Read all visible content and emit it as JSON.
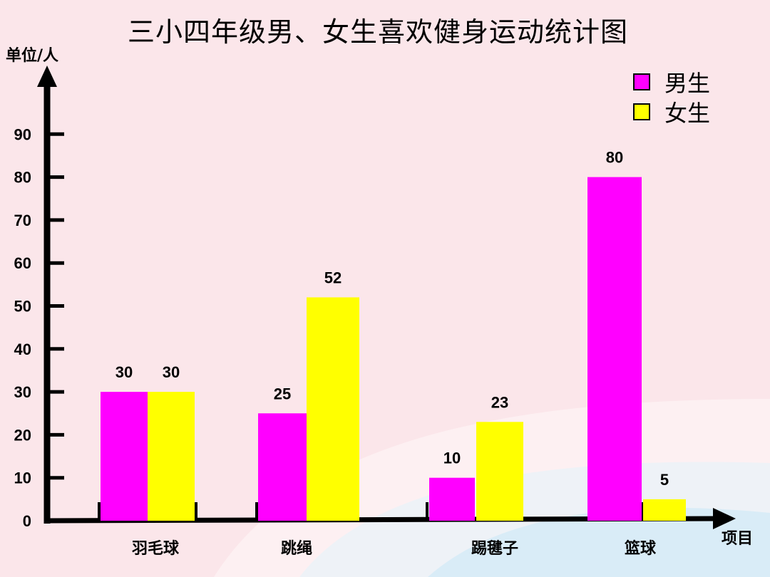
{
  "chart_data": {
    "type": "bar",
    "title": "三小四年级男、女生喜欢健身运动统计图",
    "ylabel": "单位/人",
    "xlabel": "项目",
    "categories": [
      "羽毛球",
      "跳绳",
      "踢毽子",
      "篮球"
    ],
    "series": [
      {
        "name": "男生",
        "values": [
          30,
          25,
          10,
          80
        ],
        "color": "#ff00ff"
      },
      {
        "name": "女生",
        "values": [
          30,
          52,
          23,
          5
        ],
        "color": "#ffff00"
      }
    ],
    "yticks": [
      "0",
      "10",
      "20",
      "30",
      "40",
      "50",
      "60",
      "70",
      "80",
      "90"
    ],
    "ylim": [
      0,
      90
    ],
    "legend_position": "top-right",
    "grid": false
  }
}
